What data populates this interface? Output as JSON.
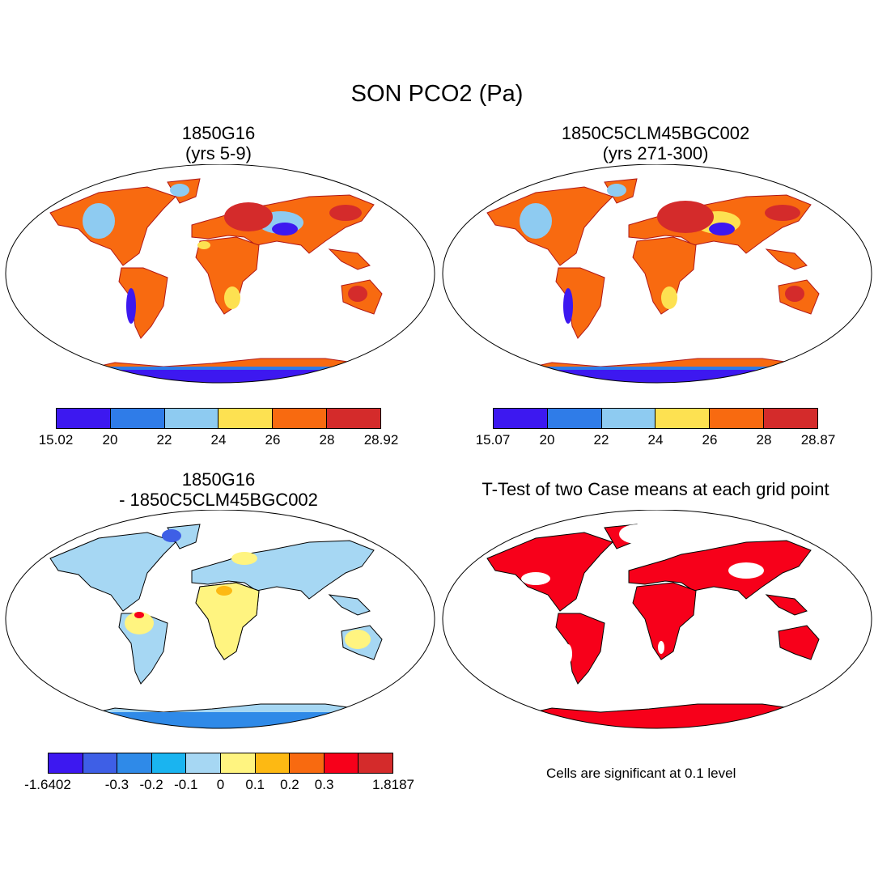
{
  "figure": {
    "title": "SON PCO2 (Pa)"
  },
  "panels": {
    "top_left": {
      "title_line1": "1850G16",
      "title_line2": "(yrs 5-9)",
      "colorbar": {
        "colors": [
          "#3d18f0",
          "#2f7ce8",
          "#8ecbf1",
          "#fde151",
          "#f86a10",
          "#d42b2b"
        ],
        "labels": [
          "15.02",
          "20",
          "22",
          "24",
          "26",
          "28",
          "28.92"
        ]
      }
    },
    "top_right": {
      "title_line1": "1850C5CLM45BGC002",
      "title_line2": "(yrs 271-300)",
      "colorbar": {
        "colors": [
          "#3d18f0",
          "#2f7ce8",
          "#8ecbf1",
          "#fde151",
          "#f86a10",
          "#d42b2b"
        ],
        "labels": [
          "15.07",
          "20",
          "22",
          "24",
          "26",
          "28",
          "28.87"
        ]
      }
    },
    "bottom_left": {
      "title_line1": "1850G16",
      "title_line2": "- 1850C5CLM45BGC002",
      "colorbar": {
        "colors": [
          "#3d18f0",
          "#3e5fe6",
          "#2f8ae8",
          "#1ab4f0",
          "#a6d7f3",
          "#fff480",
          "#fdb913",
          "#f86a10",
          "#f7001a",
          "#d42b2b"
        ],
        "labels": [
          "-1.6402",
          "-0.3",
          "-0.2",
          "-0.1",
          "0",
          "0.1",
          "0.2",
          "0.3",
          "1.8187"
        ]
      }
    },
    "bottom_right": {
      "title": "T-Test of two Case means at each grid point",
      "note": "Cells are significant at 0.1 level"
    }
  }
}
